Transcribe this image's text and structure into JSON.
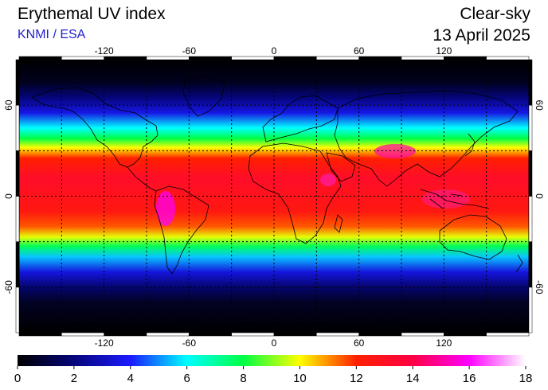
{
  "header": {
    "title": "Erythemal UV index",
    "subtitle": "KNMI / ESA",
    "mode": "Clear-sky",
    "date": "13 April 2025"
  },
  "map": {
    "projection": "equirectangular",
    "lon_range": [
      -180,
      180
    ],
    "lat_range": [
      -90,
      90
    ],
    "lon_ticks": [
      -120,
      -60,
      0,
      60,
      120
    ],
    "lon_tick_labels": [
      "-120",
      "-60",
      "0",
      "60",
      "120"
    ],
    "lat_ticks": [
      60,
      0,
      -60
    ],
    "lat_tick_labels": [
      "60",
      "0",
      "-60"
    ],
    "grid_step_deg": 30,
    "grid_style": "dotted black",
    "coastlines": true,
    "field": "UV index, maximum in tropics near 10-16°N, higher values over high terrain (Andes, Tibet, Ethiopian highlands)"
  },
  "colorbar": {
    "min": 0,
    "max": 18,
    "tick_values": [
      0,
      2,
      4,
      6,
      8,
      10,
      12,
      14,
      16,
      18
    ],
    "tick_labels": [
      "0",
      "2",
      "4",
      "6",
      "8",
      "10",
      "12",
      "14",
      "16",
      "18"
    ],
    "stops": [
      {
        "v": 0,
        "c": "#000000"
      },
      {
        "v": 2,
        "c": "#05057a"
      },
      {
        "v": 4,
        "c": "#1a1aff"
      },
      {
        "v": 6,
        "c": "#00ffff"
      },
      {
        "v": 8,
        "c": "#00ff44"
      },
      {
        "v": 10,
        "c": "#ffff00"
      },
      {
        "v": 12,
        "c": "#ff2000"
      },
      {
        "v": 14,
        "c": "#ff0044"
      },
      {
        "v": 16,
        "c": "#ff00ff"
      },
      {
        "v": 18,
        "c": "#ffffff"
      }
    ]
  }
}
